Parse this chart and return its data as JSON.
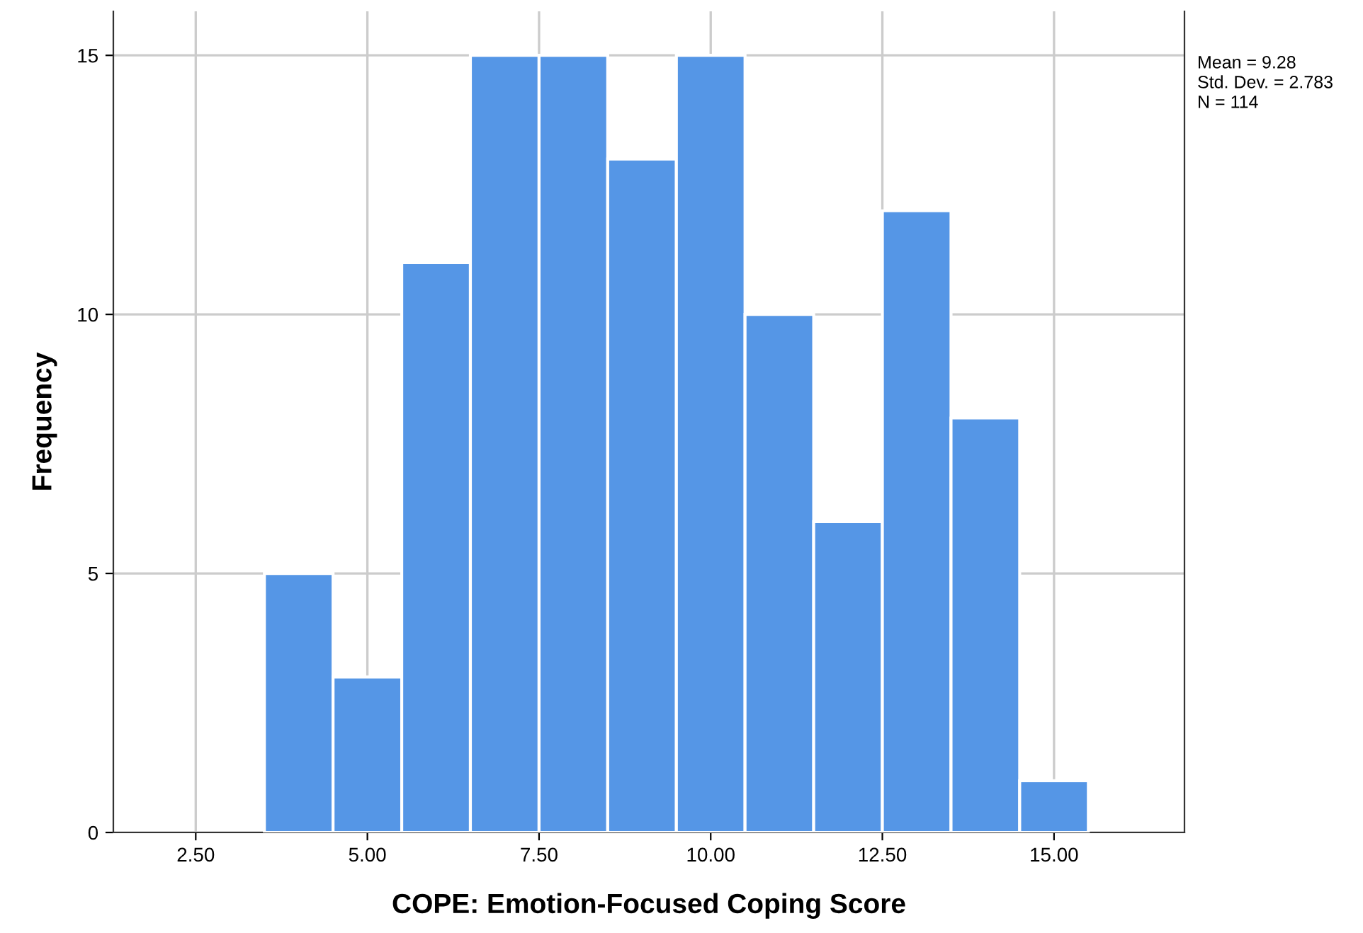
{
  "chart_data": {
    "type": "histogram",
    "xlabel": "COPE: Emotion-Focused Coping Score",
    "ylabel": "Frequency",
    "bins": [
      3.5,
      4.5,
      5.5,
      6.5,
      7.5,
      8.5,
      9.5,
      10.5,
      11.5,
      12.5,
      13.5,
      14.5,
      15.5
    ],
    "values": [
      5,
      3,
      11,
      15,
      15,
      13,
      15,
      10,
      6,
      12,
      8,
      1
    ],
    "color": "#5596e6",
    "xlim": [
      1.3,
      16.9
    ],
    "xticks": [
      {
        "value": 2.5,
        "label": "2.50"
      },
      {
        "value": 5,
        "label": "5.00"
      },
      {
        "value": 7.5,
        "label": "7.50"
      },
      {
        "value": 10,
        "label": "10.00"
      },
      {
        "value": 12.5,
        "label": "12.50"
      },
      {
        "value": 15,
        "label": "15.00"
      }
    ],
    "ylim": [
      0,
      15.85
    ],
    "yticks": [
      0,
      5,
      10,
      15
    ],
    "grid": true,
    "annotations": [
      "Mean = 9.28",
      "Std. Dev. = 2.783",
      "N = 114"
    ]
  }
}
